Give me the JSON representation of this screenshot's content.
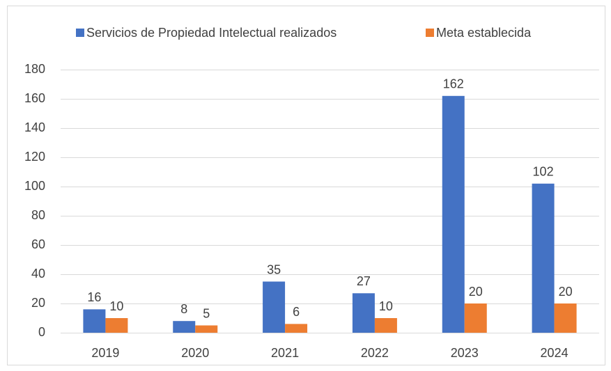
{
  "chart_data": {
    "type": "bar",
    "categories": [
      "2019",
      "2020",
      "2021",
      "2022",
      "2023",
      "2024"
    ],
    "series": [
      {
        "name": "Servicios de Propiedad Intelectual realizados",
        "color": "#4472c4",
        "values": [
          16,
          8,
          35,
          27,
          162,
          102
        ]
      },
      {
        "name": "Meta establecida",
        "color": "#ed7d31",
        "values": [
          10,
          5,
          6,
          10,
          20,
          20
        ]
      }
    ],
    "ylim": [
      0,
      180
    ],
    "yticks": [
      0,
      20,
      40,
      60,
      80,
      100,
      120,
      140,
      160,
      180
    ],
    "grid": true,
    "legend": "top"
  }
}
